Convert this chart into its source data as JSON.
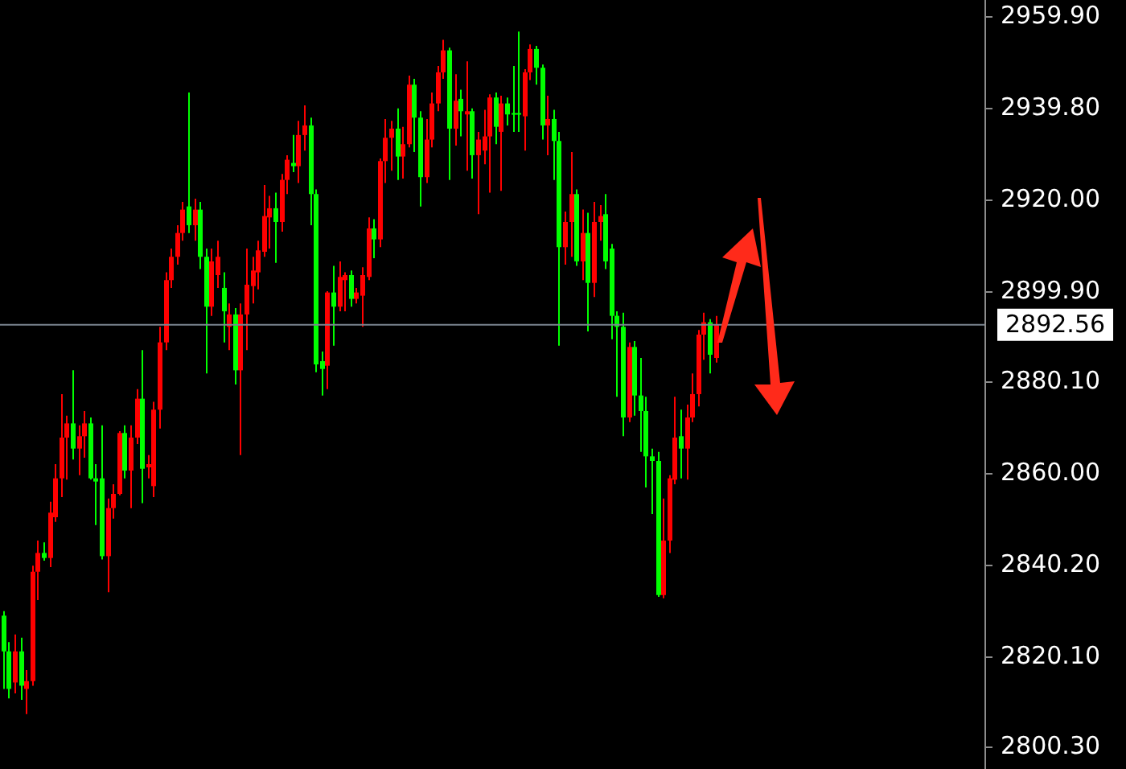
{
  "chart_data": {
    "type": "candlestick",
    "categories": [
      null,
      null,
      null,
      null,
      null,
      null,
      null,
      null,
      null,
      null,
      null,
      null,
      null,
      null,
      null,
      null,
      null,
      null,
      null,
      null,
      null,
      null,
      null,
      null,
      null,
      null,
      null,
      null,
      null,
      null,
      null,
      null,
      null,
      null,
      null,
      null,
      null,
      null,
      null,
      null,
      null,
      null,
      null,
      null,
      null,
      null,
      null,
      null,
      null,
      null,
      null,
      null,
      null,
      null,
      null,
      null,
      null,
      null,
      null,
      null,
      null,
      null,
      null,
      null,
      null,
      null,
      null,
      null,
      null,
      null,
      null,
      null,
      null,
      null,
      null,
      null,
      null,
      null,
      null,
      null,
      null,
      null,
      null,
      null,
      null,
      null,
      null,
      null,
      null,
      null,
      null,
      null,
      null,
      null,
      null,
      null,
      null,
      null,
      null,
      null,
      null,
      null,
      null,
      null,
      null,
      null,
      null,
      null,
      null,
      null,
      null,
      null,
      null,
      null,
      null,
      null,
      null,
      null,
      null,
      null,
      null,
      null,
      null,
      null,
      null,
      null,
      null,
      null,
      null,
      null,
      null,
      null,
      null,
      null,
      null,
      null,
      null,
      null,
      null,
      null,
      null,
      null,
      null,
      null,
      null,
      null,
      null,
      null,
      null,
      null,
      null,
      null,
      null,
      null,
      null,
      null,
      null,
      null,
      null,
      null,
      null,
      null,
      null,
      null,
      null,
      null,
      null,
      null,
      null,
      null
    ],
    "ohlc": [
      [
        2829.0,
        2830.0,
        2813.0,
        2821.2
      ],
      [
        2821.2,
        2823.2,
        2810.9,
        2813.0
      ],
      [
        2814.4,
        2824.9,
        2812.0,
        2821.2
      ],
      [
        2821.2,
        2824.2,
        2810.6,
        2813.7
      ],
      [
        2813.0,
        2817.1,
        2807.5,
        2814.7
      ],
      [
        2814.7,
        2839.9,
        2813.7,
        2838.6
      ],
      [
        2838.6,
        2845.4,
        2832.4,
        2842.7
      ],
      [
        2842.7,
        2845.0,
        2841.0,
        2841.6
      ],
      [
        2841.6,
        2853.9,
        2839.6,
        2851.5
      ],
      [
        2850.5,
        2862.1,
        2849.5,
        2859.0
      ],
      [
        2859.0,
        2877.4,
        2854.9,
        2867.9
      ],
      [
        2867.9,
        2872.7,
        2858.7,
        2871.0
      ],
      [
        2871.0,
        2882.6,
        2863.1,
        2865.5
      ],
      [
        2865.5,
        2870.6,
        2859.7,
        2868.2
      ],
      [
        2868.2,
        2873.7,
        2863.5,
        2871.0
      ],
      [
        2871.0,
        2872.3,
        2858.7,
        2859.0
      ],
      [
        2859.0,
        2862.1,
        2848.8,
        2858.3
      ],
      [
        2859.0,
        2870.6,
        2841.3,
        2842.0
      ],
      [
        2842.0,
        2854.6,
        2834.1,
        2852.5
      ],
      [
        2852.5,
        2857.7,
        2850.2,
        2855.6
      ],
      [
        2855.6,
        2869.3,
        2855.3,
        2868.9
      ],
      [
        2868.9,
        2870.6,
        2859.0,
        2860.7
      ],
      [
        2860.7,
        2870.6,
        2852.5,
        2867.9
      ],
      [
        2867.9,
        2878.5,
        2866.5,
        2876.4
      ],
      [
        2876.4,
        2887.0,
        2853.6,
        2861.1
      ],
      [
        2861.4,
        2864.1,
        2859.0,
        2862.1
      ],
      [
        2857.3,
        2875.7,
        2854.9,
        2874.0
      ],
      [
        2874.0,
        2892.1,
        2869.9,
        2888.7
      ],
      [
        2888.7,
        2904.0,
        2887.0,
        2902.3
      ],
      [
        2902.3,
        2909.2,
        2900.6,
        2907.4
      ],
      [
        2907.4,
        2914.3,
        2905.7,
        2912.6
      ],
      [
        2912.6,
        2919.4,
        2910.9,
        2917.7
      ],
      [
        2918.4,
        2943.3,
        2912.6,
        2914.3
      ],
      [
        2914.3,
        2920.1,
        2910.9,
        2917.7
      ],
      [
        2917.7,
        2919.4,
        2904.7,
        2907.4
      ],
      [
        2907.4,
        2909.2,
        2881.9,
        2896.5
      ],
      [
        2896.5,
        2909.2,
        2894.5,
        2906.4
      ],
      [
        2903.4,
        2910.9,
        2900.6,
        2907.4
      ],
      [
        2900.6,
        2904.0,
        2888.7,
        2895.5
      ],
      [
        2892.1,
        2897.2,
        2887.0,
        2894.8
      ],
      [
        2894.8,
        2896.2,
        2879.5,
        2882.6
      ],
      [
        2882.6,
        2897.2,
        2864.1,
        2894.8
      ],
      [
        2894.8,
        2909.2,
        2887.0,
        2901.3
      ],
      [
        2901.0,
        2907.4,
        2897.2,
        2904.4
      ],
      [
        2904.0,
        2910.9,
        2900.3,
        2908.8
      ],
      [
        2908.5,
        2923.1,
        2907.4,
        2916.3
      ],
      [
        2916.0,
        2920.7,
        2909.2,
        2918.0
      ],
      [
        2918.0,
        2921.4,
        2906.1,
        2915.0
      ],
      [
        2915.0,
        2925.5,
        2912.9,
        2924.2
      ],
      [
        2924.2,
        2929.6,
        2921.1,
        2928.6
      ],
      [
        2927.9,
        2934.0,
        2925.9,
        2927.2
      ],
      [
        2927.2,
        2937.1,
        2923.5,
        2934.0
      ],
      [
        2934.0,
        2940.5,
        2930.6,
        2936.1
      ],
      [
        2936.1,
        2937.8,
        2914.3,
        2921.1
      ],
      [
        2921.1,
        2922.1,
        2882.2,
        2883.9
      ],
      [
        2884.6,
        2886.7,
        2877.1,
        2882.9
      ],
      [
        2883.6,
        2899.9,
        2878.5,
        2899.6
      ],
      [
        2899.6,
        2905.4,
        2888.0,
        2896.5
      ],
      [
        2896.5,
        2906.4,
        2895.5,
        2903.0
      ],
      [
        2902.3,
        2904.0,
        2895.5,
        2903.4
      ],
      [
        2903.4,
        2904.4,
        2896.5,
        2898.2
      ],
      [
        2898.2,
        2900.6,
        2897.2,
        2899.6
      ],
      [
        2898.9,
        2905.1,
        2892.1,
        2903.4
      ],
      [
        2903.0,
        2916.0,
        2902.3,
        2913.6
      ],
      [
        2913.6,
        2915.6,
        2907.1,
        2911.2
      ],
      [
        2911.2,
        2928.9,
        2909.5,
        2928.3
      ],
      [
        2928.3,
        2937.5,
        2923.5,
        2933.4
      ],
      [
        2933.4,
        2937.1,
        2926.2,
        2935.4
      ],
      [
        2935.4,
        2939.8,
        2924.2,
        2929.3
      ],
      [
        2929.3,
        2935.8,
        2924.5,
        2932.0
      ],
      [
        2932.0,
        2947.0,
        2931.3,
        2945.0
      ],
      [
        2945.0,
        2946.3,
        2930.3,
        2937.8
      ],
      [
        2937.8,
        2939.2,
        2918.4,
        2924.8
      ],
      [
        2924.8,
        2937.5,
        2923.5,
        2933.0
      ],
      [
        2933.0,
        2943.3,
        2931.3,
        2940.9
      ],
      [
        2940.9,
        2949.1,
        2939.2,
        2947.7
      ],
      [
        2947.7,
        2954.8,
        2946.3,
        2952.5
      ],
      [
        2952.5,
        2953.1,
        2924.2,
        2935.4
      ],
      [
        2935.4,
        2947.3,
        2931.7,
        2941.5
      ],
      [
        2941.9,
        2943.9,
        2933.7,
        2939.2
      ],
      [
        2938.5,
        2950.1,
        2926.2,
        2939.2
      ],
      [
        2939.2,
        2939.8,
        2924.5,
        2929.6
      ],
      [
        2929.6,
        2934.7,
        2916.7,
        2933.0
      ],
      [
        2930.6,
        2939.5,
        2927.6,
        2933.7
      ],
      [
        2933.7,
        2942.9,
        2921.4,
        2942.2
      ],
      [
        2942.2,
        2943.3,
        2932.0,
        2935.8
      ],
      [
        2934.7,
        2942.6,
        2921.8,
        2940.9
      ],
      [
        2940.9,
        2942.2,
        2936.1,
        2938.5
      ],
      [
        2938.8,
        2949.1,
        2934.7,
        2938.5
      ],
      [
        2938.8,
        2956.6,
        2934.7,
        2938.5
      ],
      [
        2938.1,
        2948.4,
        2930.6,
        2947.7
      ],
      [
        2947.7,
        2953.8,
        2946.0,
        2952.8
      ],
      [
        2952.8,
        2953.5,
        2945.0,
        2948.7
      ],
      [
        2948.7,
        2949.4,
        2933.0,
        2936.1
      ],
      [
        2936.1,
        2942.6,
        2929.6,
        2937.5
      ],
      [
        2937.5,
        2939.5,
        2924.2,
        2932.7
      ],
      [
        2932.7,
        2934.7,
        2888.0,
        2909.5
      ],
      [
        2909.5,
        2917.3,
        2905.7,
        2915.0
      ],
      [
        2915.0,
        2930.3,
        2907.4,
        2921.1
      ],
      [
        2921.1,
        2922.1,
        2905.4,
        2906.4
      ],
      [
        2906.4,
        2917.7,
        2902.3,
        2912.6
      ],
      [
        2912.6,
        2917.0,
        2891.1,
        2901.7
      ],
      [
        2901.7,
        2919.4,
        2898.6,
        2915.0
      ],
      [
        2915.0,
        2918.7,
        2910.9,
        2916.3
      ],
      [
        2916.7,
        2921.1,
        2904.7,
        2906.4
      ],
      [
        2909.2,
        2910.2,
        2889.4,
        2894.5
      ],
      [
        2894.5,
        2895.5,
        2876.8,
        2892.1
      ],
      [
        2892.1,
        2895.2,
        2868.2,
        2872.3
      ],
      [
        2872.3,
        2888.7,
        2871.3,
        2887.7
      ],
      [
        2887.7,
        2889.0,
        2872.7,
        2877.1
      ],
      [
        2877.1,
        2885.3,
        2864.8,
        2873.7
      ],
      [
        2873.7,
        2876.8,
        2857.0,
        2863.8
      ],
      [
        2863.8,
        2865.5,
        2851.2,
        2862.8
      ],
      [
        2862.8,
        2864.8,
        2833.1,
        2833.5
      ],
      [
        2833.5,
        2854.6,
        2832.8,
        2845.4
      ],
      [
        2845.4,
        2859.7,
        2842.7,
        2859.0
      ],
      [
        2858.7,
        2876.8,
        2857.7,
        2867.9
      ],
      [
        2868.2,
        2874.0,
        2859.0,
        2865.5
      ],
      [
        2865.5,
        2875.1,
        2858.7,
        2872.3
      ],
      [
        2872.3,
        2881.9,
        2871.3,
        2877.4
      ],
      [
        2877.4,
        2891.4,
        2874.7,
        2890.4
      ],
      [
        2890.4,
        2895.2,
        2884.9,
        2893.1
      ],
      [
        2893.1,
        2893.8,
        2881.9,
        2886.0
      ],
      [
        2885.3,
        2894.5,
        2884.3,
        2892.56
      ],
      null,
      null,
      null,
      null,
      null,
      null,
      null,
      null,
      null,
      null,
      null,
      null,
      null,
      null,
      null,
      null,
      null,
      null,
      null,
      null,
      null,
      null,
      null,
      null,
      null,
      null,
      null,
      null,
      null,
      null,
      null,
      null,
      null,
      null,
      null,
      null,
      null,
      null,
      null,
      null,
      null,
      null,
      null,
      null,
      null,
      null
    ],
    "colors": [
      "#00ff00",
      "#00ff00",
      "#ff0000",
      "#00ff00",
      "#ff0000",
      "#ff0000",
      "#ff0000",
      "#00ff00",
      "#ff0000",
      "#ff0000",
      "#ff0000",
      "#ff0000",
      "#00ff00",
      "#ff0000",
      "#ff0000",
      "#00ff00",
      "#00ff00",
      "#00ff00",
      "#ff0000",
      "#ff0000",
      "#ff0000",
      "#00ff00",
      "#ff0000",
      "#ff0000",
      "#00ff00",
      "#ff0000",
      "#ff0000",
      "#ff0000",
      "#ff0000",
      "#ff0000",
      "#ff0000",
      "#ff0000",
      "#00ff00",
      "#ff0000",
      "#00ff00",
      "#00ff00",
      "#ff0000",
      "#ff0000",
      "#00ff00",
      "#ff0000",
      "#00ff00",
      "#ff0000",
      "#ff0000",
      "#ff0000",
      "#ff0000",
      "#ff0000",
      "#ff0000",
      "#00ff00",
      "#ff0000",
      "#ff0000",
      "#00ff00",
      "#ff0000",
      "#ff0000",
      "#00ff00",
      "#00ff00",
      "#00ff00",
      "#ff0000",
      "#00ff00",
      "#ff0000",
      "#ff0000",
      "#00ff00",
      "#ff0000",
      "#ff0000",
      "#ff0000",
      "#00ff00",
      "#ff0000",
      "#ff0000",
      "#ff0000",
      "#00ff00",
      "#ff0000",
      "#ff0000",
      "#00ff00",
      "#00ff00",
      "#ff0000",
      "#ff0000",
      "#ff0000",
      "#ff0000",
      "#00ff00",
      "#ff0000",
      "#00ff00",
      "#ff0000",
      "#00ff00",
      "#ff0000",
      "#ff0000",
      "#ff0000",
      "#00ff00",
      "#ff0000",
      "#00ff00",
      "#00ff00",
      "#00ff00",
      "#ff0000",
      "#ff0000",
      "#00ff00",
      "#00ff00",
      "#ff0000",
      "#00ff00",
      "#00ff00",
      "#ff0000",
      "#ff0000",
      "#00ff00",
      "#ff0000",
      "#00ff00",
      "#ff0000",
      "#ff0000",
      "#00ff00",
      "#00ff00",
      "#00ff00",
      "#00ff00",
      "#ff0000",
      "#00ff00",
      "#00ff00",
      "#00ff00",
      "#00ff00",
      "#00ff00",
      "#ff0000",
      "#ff0000",
      "#ff0000",
      "#00ff00",
      "#ff0000",
      "#ff0000",
      "#ff0000",
      "#ff0000",
      "#00ff00",
      "#ff0000",
      null,
      null,
      null,
      null,
      null,
      null,
      null,
      null,
      null,
      null,
      null,
      null,
      null,
      null,
      null,
      null,
      null,
      null,
      null,
      null,
      null,
      null,
      null,
      null,
      null,
      null,
      null,
      null,
      null,
      null,
      null,
      null,
      null,
      null,
      null,
      null,
      null,
      null,
      null,
      null,
      null,
      null,
      null,
      null,
      null,
      null
    ],
    "ylim": [
      2795.5,
      2963.5
    ],
    "yticks": [
      {
        "value": 2800.3,
        "label": "2800.30"
      },
      {
        "value": 2820.1,
        "label": "2820.10"
      },
      {
        "value": 2840.2,
        "label": "2840.20"
      },
      {
        "value": 2860,
        "label": "2860.00"
      },
      {
        "value": 2880.1,
        "label": "2880.10"
      },
      {
        "value": 2899.9,
        "label": "2899.90"
      },
      {
        "value": 2920,
        "label": "2920.00"
      },
      {
        "value": 2939.8,
        "label": "2939.80"
      },
      {
        "value": 2959.9,
        "label": "2959.90"
      }
    ],
    "ref_lines": [
      {
        "axis": "y",
        "value": 2892.56,
        "label": "2892.56",
        "color": "#7a8490"
      }
    ],
    "tick_labels": "y",
    "grid": false
  }
}
